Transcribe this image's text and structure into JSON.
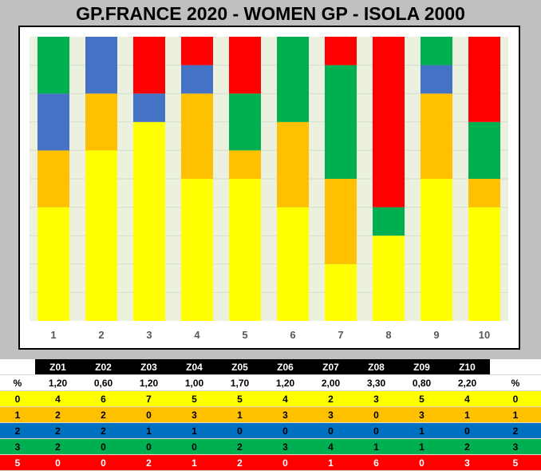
{
  "title": "GP.FRANCE 2020 - WOMEN GP - ISOLA 2000",
  "colors": {
    "plot_bg": "#ebf1de",
    "score_0": "#ffff00",
    "score_1": "#ffc000",
    "score_2": "#4472c4",
    "score_3": "#00b050",
    "score_5": "#ff0000"
  },
  "chart_data": {
    "type": "bar",
    "stacked": true,
    "categories": [
      "1",
      "2",
      "3",
      "4",
      "5",
      "6",
      "7",
      "8",
      "9",
      "10"
    ],
    "series": [
      {
        "name": "0",
        "color": "#ffff00",
        "values": [
          4,
          6,
          7,
          5,
          5,
          4,
          2,
          3,
          5,
          4
        ]
      },
      {
        "name": "1",
        "color": "#ffc000",
        "values": [
          2,
          2,
          0,
          3,
          1,
          3,
          3,
          0,
          3,
          1
        ]
      },
      {
        "name": "2",
        "color": "#4472c4",
        "values": [
          2,
          2,
          1,
          1,
          0,
          0,
          0,
          0,
          1,
          0
        ]
      },
      {
        "name": "3",
        "color": "#00b050",
        "values": [
          2,
          0,
          0,
          0,
          2,
          3,
          4,
          1,
          1,
          2
        ]
      },
      {
        "name": "5",
        "color": "#ff0000",
        "values": [
          0,
          0,
          2,
          1,
          2,
          0,
          1,
          6,
          0,
          3
        ]
      }
    ],
    "ylim": [
      0,
      10
    ],
    "grid": true,
    "y_axis_labels": false
  },
  "table": {
    "header": [
      "",
      "Z01",
      "Z02",
      "Z03",
      "Z04",
      "Z05",
      "Z06",
      "Z07",
      "Z08",
      "Z09",
      "Z10",
      ""
    ],
    "averages": [
      "%",
      "1,20",
      "0,60",
      "1,20",
      "1,00",
      "1,70",
      "1,20",
      "2,00",
      "3,30",
      "0,80",
      "2,20",
      "%"
    ],
    "rows": [
      {
        "score": "0",
        "bg": "#ffff00",
        "fg": "#000000",
        "values": [
          "4",
          "6",
          "7",
          "5",
          "5",
          "4",
          "2",
          "3",
          "5",
          "4"
        ]
      },
      {
        "score": "1",
        "bg": "#ffc000",
        "fg": "#000000",
        "values": [
          "2",
          "2",
          "0",
          "3",
          "1",
          "3",
          "3",
          "0",
          "3",
          "1"
        ]
      },
      {
        "score": "2",
        "bg": "#0070c0",
        "fg": "#000000",
        "values": [
          "2",
          "2",
          "1",
          "1",
          "0",
          "0",
          "0",
          "0",
          "1",
          "0"
        ]
      },
      {
        "score": "3",
        "bg": "#00b050",
        "fg": "#000000",
        "values": [
          "2",
          "0",
          "0",
          "0",
          "2",
          "3",
          "4",
          "1",
          "1",
          "2"
        ]
      },
      {
        "score": "5",
        "bg": "#ff0000",
        "fg": "#ffffff",
        "values": [
          "0",
          "0",
          "2",
          "1",
          "2",
          "0",
          "1",
          "6",
          "0",
          "3"
        ]
      }
    ]
  }
}
